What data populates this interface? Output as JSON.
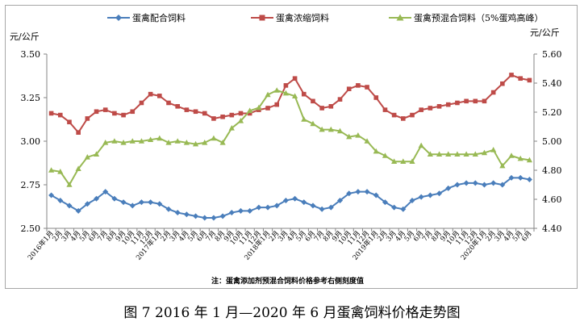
{
  "chart_data": {
    "type": "line",
    "left_unit": "元/公斤",
    "right_unit": "元/公斤",
    "left_axis": {
      "min": 2.5,
      "max": 3.5,
      "ticks": [
        "2.50",
        "2.75",
        "3.00",
        "3.25",
        "3.50"
      ]
    },
    "right_axis": {
      "min": 4.4,
      "max": 5.6,
      "ticks": [
        "4.40",
        "4.60",
        "4.80",
        "5.00",
        "5.20",
        "5.40",
        "5.60"
      ]
    },
    "x": [
      "2016年1月",
      "2月",
      "3月",
      "4月",
      "5月",
      "6月",
      "7月",
      "8月",
      "9月",
      "10月",
      "11月",
      "12月",
      "2017年1月",
      "2月",
      "3月",
      "4月",
      "5月",
      "6月",
      "7月",
      "8月",
      "9月",
      "10月",
      "11月",
      "12月",
      "2018年1月",
      "2月",
      "3月",
      "4月",
      "5月",
      "6月",
      "7月",
      "8月",
      "9月",
      "10月",
      "11月",
      "12月",
      "2019年1月",
      "2月",
      "3月",
      "4月",
      "5月",
      "6月",
      "7月",
      "8月",
      "9月",
      "10月",
      "11月",
      "12月",
      "2020年1月",
      "2月",
      "3月",
      "4月",
      "5月",
      "6月"
    ],
    "series": [
      {
        "name": "蛋禽配合饲料",
        "axis": "left",
        "color": "#4a7ebb",
        "marker": "diamond",
        "values": [
          2.69,
          2.66,
          2.63,
          2.6,
          2.64,
          2.67,
          2.71,
          2.67,
          2.65,
          2.63,
          2.65,
          2.65,
          2.64,
          2.61,
          2.59,
          2.58,
          2.57,
          2.56,
          2.56,
          2.57,
          2.59,
          2.6,
          2.6,
          2.62,
          2.62,
          2.63,
          2.66,
          2.67,
          2.65,
          2.63,
          2.61,
          2.62,
          2.66,
          2.7,
          2.71,
          2.71,
          2.69,
          2.65,
          2.62,
          2.61,
          2.66,
          2.68,
          2.69,
          2.7,
          2.73,
          2.75,
          2.76,
          2.76,
          2.75,
          2.76,
          2.75,
          2.79,
          2.79,
          2.78
        ]
      },
      {
        "name": "蛋禽浓缩饲料",
        "axis": "left",
        "color": "#be4b48",
        "marker": "square",
        "values": [
          3.16,
          3.15,
          3.11,
          3.05,
          3.13,
          3.17,
          3.18,
          3.16,
          3.15,
          3.17,
          3.22,
          3.27,
          3.26,
          3.22,
          3.2,
          3.18,
          3.17,
          3.16,
          3.13,
          3.14,
          3.15,
          3.16,
          3.16,
          3.18,
          3.19,
          3.21,
          3.32,
          3.36,
          3.27,
          3.23,
          3.19,
          3.2,
          3.24,
          3.3,
          3.32,
          3.31,
          3.25,
          3.18,
          3.15,
          3.13,
          3.15,
          3.18,
          3.19,
          3.2,
          3.21,
          3.22,
          3.23,
          3.23,
          3.23,
          3.28,
          3.33,
          3.38,
          3.36,
          3.35
        ]
      },
      {
        "name": "蛋禽预混合饲料（5%蛋鸡高峰）",
        "axis": "right",
        "color": "#98b954",
        "marker": "triangle",
        "values": [
          4.8,
          4.79,
          4.7,
          4.81,
          4.89,
          4.91,
          4.99,
          5.0,
          4.99,
          5.0,
          5.0,
          5.01,
          5.02,
          4.99,
          5.0,
          4.99,
          4.98,
          4.99,
          5.02,
          4.99,
          5.09,
          5.14,
          5.21,
          5.23,
          5.32,
          5.35,
          5.33,
          5.31,
          5.15,
          5.12,
          5.08,
          5.08,
          5.07,
          5.03,
          5.04,
          5.0,
          4.93,
          4.9,
          4.86,
          4.86,
          4.86,
          4.97,
          4.91,
          4.91,
          4.91,
          4.91,
          4.91,
          4.91,
          4.92,
          4.94,
          4.83,
          4.9,
          4.88,
          4.87
        ]
      }
    ],
    "grid": false,
    "legend_position": "top"
  },
  "note": "注：蛋禽添加剂预混合饲料价格参考右侧刻度值",
  "caption": "图 7    2016 年 1 月—2020 年 6 月蛋禽饲料价格走势图"
}
